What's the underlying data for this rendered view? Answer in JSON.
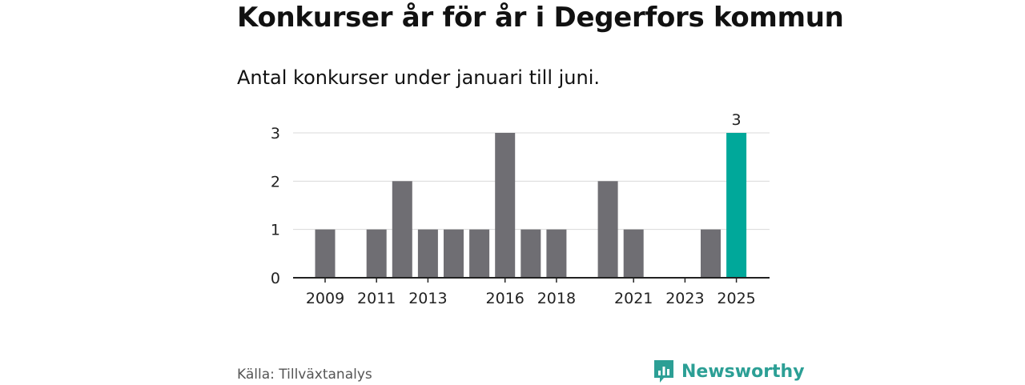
{
  "title": "Konkurser år för år i Degerfors kommun",
  "subtitle": "Antal konkurser under januari till juni.",
  "source": "Källa: Tillväxtanalys",
  "brand": {
    "name": "Newsworthy",
    "icon": "newsworthy-logo-icon"
  },
  "colors": {
    "bar": "#6f6e73",
    "highlight": "#00a89a",
    "grid": "#d9d9d9",
    "axis": "#222222",
    "brand": "#2c9f95"
  },
  "chart_data": {
    "type": "bar",
    "categories": [
      "2009",
      "2010",
      "2011",
      "2012",
      "2013",
      "2014",
      "2015",
      "2016",
      "2017",
      "2018",
      "2019",
      "2020",
      "2021",
      "2022",
      "2023",
      "2024",
      "2025"
    ],
    "values": [
      1,
      0,
      1,
      2,
      1,
      1,
      1,
      3,
      1,
      1,
      0,
      2,
      1,
      0,
      0,
      1,
      3
    ],
    "x_tick_labels": [
      "2009",
      "2011",
      "2013",
      "2016",
      "2018",
      "2021",
      "2023",
      "2025"
    ],
    "y_ticks": [
      0,
      1,
      2,
      3
    ],
    "ylim": [
      0,
      3
    ],
    "grid": true,
    "highlight_category": "2025",
    "data_labels": [
      {
        "category": "2025",
        "text": "3"
      }
    ]
  }
}
